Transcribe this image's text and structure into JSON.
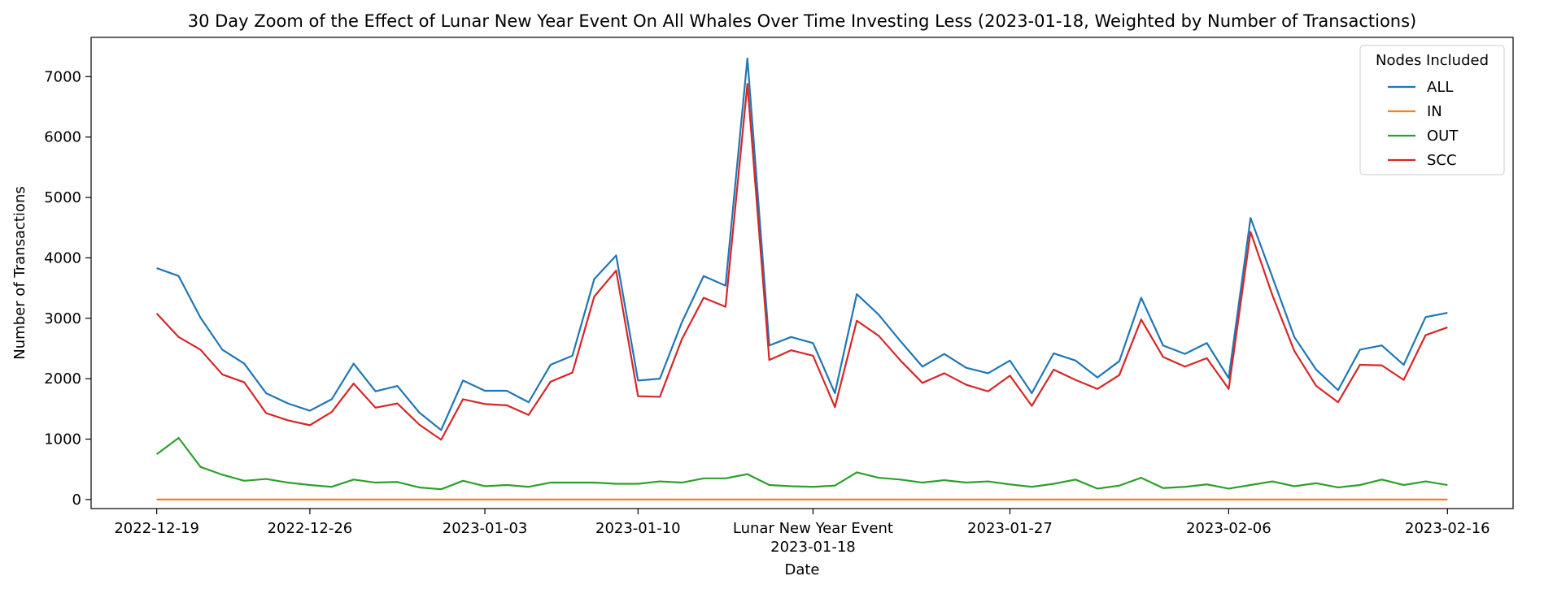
{
  "chart_data": {
    "type": "line",
    "title": "30 Day Zoom of the Effect of Lunar New Year Event On All Whales Over Time Investing Less (2023-01-18, Weighted by Number of Transactions)",
    "xlabel": "Date",
    "ylabel": "Number of Transactions",
    "x_start": "2022-12-19",
    "x_end": "2023-02-16",
    "xlim": [
      "2022-12-16",
      "2023-02-19"
    ],
    "ylim": [
      -150,
      7650
    ],
    "yticks": [
      0,
      1000,
      2000,
      3000,
      4000,
      5000,
      6000,
      7000
    ],
    "xticks": [
      {
        "date": "2022-12-19",
        "label": "2022-12-19"
      },
      {
        "date": "2022-12-26",
        "label": "2022-12-26"
      },
      {
        "date": "2023-01-03",
        "label": "2023-01-03"
      },
      {
        "date": "2023-01-10",
        "label": "2023-01-10"
      },
      {
        "date": "2023-01-18",
        "label": "Lunar New Year Event",
        "label2": "2023-01-18"
      },
      {
        "date": "2023-01-27",
        "label": "2023-01-27"
      },
      {
        "date": "2023-02-06",
        "label": "2023-02-06"
      },
      {
        "date": "2023-02-16",
        "label": "2023-02-16"
      }
    ],
    "legend": {
      "title": "Nodes Included",
      "placement": "top-right"
    },
    "grid": false,
    "series": [
      {
        "name": "ALL",
        "color": "#1f77b4",
        "values": [
          3830,
          3700,
          3010,
          2480,
          2250,
          1760,
          1590,
          1470,
          1660,
          2250,
          1790,
          1880,
          1440,
          1150,
          1970,
          1800,
          1800,
          1610,
          2230,
          2380,
          3650,
          4040,
          1970,
          2000,
          2930,
          3700,
          3540,
          7300,
          2550,
          2690,
          2590,
          1760,
          3400,
          3060,
          2620,
          2200,
          2410,
          2180,
          2090,
          2300,
          1760,
          2420,
          2300,
          2020,
          2290,
          3340,
          2550,
          2410,
          2590,
          2010,
          4660,
          3680,
          2690,
          2150,
          1810,
          2480,
          2550,
          2230,
          3020,
          3090
        ]
      },
      {
        "name": "IN",
        "color": "#ff7f0e",
        "values": [
          0,
          0,
          0,
          0,
          0,
          0,
          0,
          0,
          0,
          0,
          0,
          0,
          0,
          0,
          0,
          0,
          0,
          0,
          0,
          0,
          0,
          0,
          0,
          0,
          0,
          0,
          0,
          0,
          0,
          0,
          0,
          0,
          0,
          0,
          0,
          0,
          0,
          0,
          0,
          0,
          0,
          0,
          0,
          0,
          0,
          0,
          0,
          0,
          0,
          0,
          0,
          0,
          0,
          0,
          0,
          0,
          0,
          0,
          0,
          0
        ]
      },
      {
        "name": "OUT",
        "color": "#2ca02c",
        "values": [
          750,
          1020,
          540,
          410,
          310,
          340,
          280,
          240,
          210,
          330,
          280,
          290,
          200,
          170,
          310,
          220,
          240,
          210,
          280,
          280,
          280,
          260,
          260,
          300,
          280,
          350,
          350,
          420,
          240,
          220,
          210,
          230,
          450,
          360,
          330,
          280,
          320,
          280,
          300,
          250,
          210,
          260,
          330,
          180,
          230,
          360,
          190,
          210,
          250,
          180,
          240,
          300,
          220,
          270,
          200,
          240,
          330,
          240,
          300,
          240
        ]
      },
      {
        "name": "SCC",
        "color": "#d62728",
        "values": [
          3080,
          2690,
          2480,
          2070,
          1940,
          1430,
          1310,
          1230,
          1450,
          1920,
          1520,
          1590,
          1240,
          990,
          1660,
          1580,
          1560,
          1400,
          1950,
          2100,
          3360,
          3790,
          1710,
          1700,
          2650,
          3340,
          3190,
          6880,
          2310,
          2470,
          2380,
          1530,
          2960,
          2710,
          2300,
          1930,
          2090,
          1900,
          1790,
          2050,
          1550,
          2150,
          1980,
          1830,
          2060,
          2980,
          2360,
          2200,
          2340,
          1830,
          4430,
          3380,
          2460,
          1880,
          1610,
          2230,
          2220,
          1980,
          2720,
          2850
        ]
      }
    ]
  }
}
